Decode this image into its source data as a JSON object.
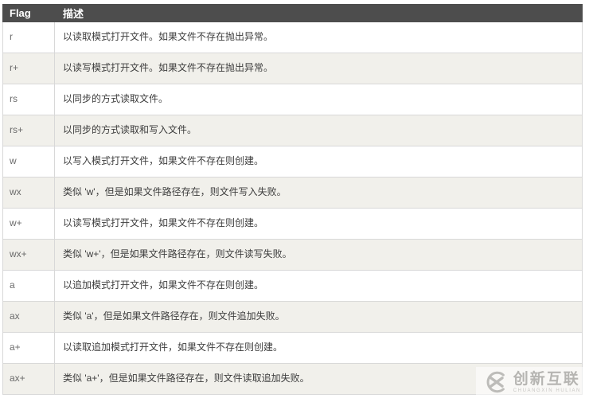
{
  "table": {
    "headers": {
      "flag": "Flag",
      "desc": "描述"
    },
    "rows": [
      {
        "flag": "r",
        "desc": "以读取模式打开文件。如果文件不存在抛出异常。"
      },
      {
        "flag": "r+",
        "desc": "以读写模式打开文件。如果文件不存在抛出异常。"
      },
      {
        "flag": "rs",
        "desc": "以同步的方式读取文件。"
      },
      {
        "flag": "rs+",
        "desc": "以同步的方式读取和写入文件。"
      },
      {
        "flag": "w",
        "desc": "以写入模式打开文件，如果文件不存在则创建。"
      },
      {
        "flag": "wx",
        "desc": "类似 'w'，但是如果文件路径存在，则文件写入失败。"
      },
      {
        "flag": "w+",
        "desc": "以读写模式打开文件，如果文件不存在则创建。"
      },
      {
        "flag": "wx+",
        "desc": "类似 'w+'，但是如果文件路径存在，则文件读写失败。"
      },
      {
        "flag": "a",
        "desc": "以追加模式打开文件，如果文件不存在则创建。"
      },
      {
        "flag": "ax",
        "desc": "类似 'a'，但是如果文件路径存在，则文件追加失败。"
      },
      {
        "flag": "a+",
        "desc": "以读取追加模式打开文件，如果文件不存在则创建。"
      },
      {
        "flag": "ax+",
        "desc": "类似 'a+'，但是如果文件路径存在，则文件读取追加失败。"
      }
    ]
  },
  "watermark": {
    "logo_icon": "circled-x-logo",
    "name": "创新互联",
    "subtitle": "CHUANGXIN HULIAN"
  },
  "colors": {
    "header_bg": "#4d4d4d",
    "header_text": "#ffffff",
    "row_alt_bg": "#f1f0eb",
    "border": "#d8d8d8",
    "flag_text": "#6b6b6b",
    "desc_text": "#3d3d3d",
    "watermark_gray": "#bdbcb9"
  }
}
